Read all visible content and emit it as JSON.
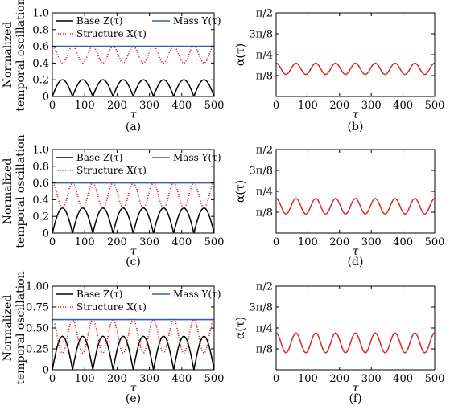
{
  "chart_data": [
    {
      "type": "line",
      "panel_label": "(a)",
      "ylabel_lines": [
        "Normalized",
        "temporal oscillation"
      ],
      "xlabel": "τ",
      "xlim": [
        0,
        500
      ],
      "ylim": [
        0,
        1.0
      ],
      "xticks": [
        0,
        100,
        200,
        300,
        400,
        500
      ],
      "yticks": [
        0,
        0.2,
        0.4,
        0.6,
        0.8,
        1.0
      ],
      "ytick_labels": [
        "0",
        "0.2",
        "0.4",
        "0.6",
        "0.8",
        "1.0"
      ],
      "legend": [
        {
          "label": "Base Z(τ)",
          "color": "#000000",
          "style": "solid"
        },
        {
          "label": "Mass Y(τ)",
          "color": "#3a5fa8",
          "style": "solid"
        },
        {
          "label": "Structure X(τ)",
          "color": "#e0202a",
          "style": "dotted"
        }
      ],
      "series": [
        {
          "name": "Base Z(τ)",
          "color": "#000000",
          "style": "solid",
          "wave": "rectified_sine",
          "period": 62.5,
          "amplitude": 0.2,
          "offset": 0.0,
          "phase_start": 0.0
        },
        {
          "name": "Structure X(τ)",
          "color": "#e0202a",
          "style": "dotted",
          "wave": "cosine",
          "period": 62.5,
          "mean": 0.5,
          "amplitude": 0.1,
          "phase_start": 0.0
        },
        {
          "name": "Mass Y(τ)",
          "color": "#3a5fa8",
          "style": "solid",
          "wave": "constant",
          "value": 0.6
        }
      ]
    },
    {
      "type": "line",
      "panel_label": "(b)",
      "ylabel": "α(τ)",
      "xlabel": "τ",
      "xlim": [
        0,
        500
      ],
      "ylim": [
        0,
        1.5708
      ],
      "xticks": [
        0,
        100,
        200,
        300,
        400,
        500
      ],
      "yticks": [
        0.3927,
        0.7854,
        1.1781,
        1.5708
      ],
      "ytick_labels": [
        "π/8",
        "π/4",
        "3π/8",
        "π/2"
      ],
      "series": [
        {
          "name": "α(τ)",
          "color": "#d62a2a",
          "style": "solid",
          "wave": "cosine",
          "period": 62.5,
          "mean": 0.52,
          "amplitude": 0.105,
          "phase_start": 0.0
        }
      ]
    },
    {
      "type": "line",
      "panel_label": "(c)",
      "ylabel_lines": [
        "Normalized",
        "temporal oscillation"
      ],
      "xlabel": "τ",
      "xlim": [
        0,
        500
      ],
      "ylim": [
        0,
        1.0
      ],
      "xticks": [
        0,
        100,
        200,
        300,
        400,
        500
      ],
      "yticks": [
        0,
        0.2,
        0.4,
        0.6,
        0.8,
        1.0
      ],
      "ytick_labels": [
        "0",
        "0.2",
        "0.4",
        "0.6",
        "0.8",
        "1.0"
      ],
      "legend": [
        {
          "label": "Base Z(τ)",
          "color": "#000000",
          "style": "solid"
        },
        {
          "label": "Mass Y(τ)",
          "color": "#3a5fa8",
          "style": "solid"
        },
        {
          "label": "Structure X(τ)",
          "color": "#e0202a",
          "style": "dotted"
        }
      ],
      "series": [
        {
          "name": "Base Z(τ)",
          "color": "#000000",
          "style": "solid",
          "wave": "rectified_sine",
          "period": 62.5,
          "amplitude": 0.3,
          "offset": 0.0,
          "phase_start": 0.0
        },
        {
          "name": "Structure X(τ)",
          "color": "#e0202a",
          "style": "dotted",
          "wave": "cosine",
          "period": 62.5,
          "mean": 0.45,
          "amplitude": 0.15,
          "phase_start": 0.0
        },
        {
          "name": "Mass Y(τ)",
          "color": "#3a5fa8",
          "style": "solid",
          "wave": "constant",
          "value": 0.6
        }
      ]
    },
    {
      "type": "line",
      "panel_label": "(d)",
      "ylabel": "α(τ)",
      "xlabel": "τ",
      "xlim": [
        0,
        500
      ],
      "ylim": [
        0,
        1.5708
      ],
      "xticks": [
        0,
        100,
        200,
        300,
        400,
        500
      ],
      "yticks": [
        0.3927,
        0.7854,
        1.1781,
        1.5708
      ],
      "ytick_labels": [
        "π/8",
        "π/4",
        "3π/8",
        "π/2"
      ],
      "series": [
        {
          "name": "α(τ)",
          "color": "#d62a2a",
          "style": "solid",
          "wave": "cosine",
          "period": 62.5,
          "mean": 0.505,
          "amplitude": 0.145,
          "phase_start": 0.0
        }
      ]
    },
    {
      "type": "line",
      "panel_label": "(e)",
      "ylabel_lines": [
        "Normalized",
        "temporal oscillation"
      ],
      "xlabel": "τ",
      "xlim": [
        0,
        500
      ],
      "ylim": [
        0,
        1.0
      ],
      "xticks": [
        0,
        100,
        200,
        300,
        400,
        500
      ],
      "yticks": [
        0,
        0.25,
        0.5,
        0.75,
        1.0
      ],
      "ytick_labels": [
        "0",
        "0.25",
        "0.50",
        "0.75",
        "1.00"
      ],
      "legend": [
        {
          "label": "Base Z(τ)",
          "color": "#000000",
          "style": "solid"
        },
        {
          "label": "Mass Y(τ)",
          "color": "#3a5fa8",
          "style": "solid"
        },
        {
          "label": "Structure X(τ)",
          "color": "#e0202a",
          "style": "dotted"
        }
      ],
      "series": [
        {
          "name": "Base Z(τ)",
          "color": "#000000",
          "style": "solid",
          "wave": "rectified_sine",
          "period": 62.5,
          "amplitude": 0.4,
          "offset": 0.0,
          "phase_start": 0.0
        },
        {
          "name": "Structure X(τ)",
          "color": "#e0202a",
          "style": "dotted",
          "wave": "cosine",
          "period": 62.5,
          "mean": 0.4,
          "amplitude": 0.2,
          "phase_start": 0.0
        },
        {
          "name": "Mass Y(τ)",
          "color": "#3a5fa8",
          "style": "solid",
          "wave": "constant",
          "value": 0.6
        }
      ]
    },
    {
      "type": "line",
      "panel_label": "(f)",
      "ylabel": "α(τ)",
      "xlabel": "τ",
      "xlim": [
        0,
        500
      ],
      "ylim": [
        0,
        1.5708
      ],
      "xticks": [
        0,
        100,
        200,
        300,
        400,
        500
      ],
      "yticks": [
        0.3927,
        0.7854,
        1.1781,
        1.5708
      ],
      "ytick_labels": [
        "π/8",
        "π/4",
        "3π/8",
        "π/2"
      ],
      "series": [
        {
          "name": "α(τ)",
          "color": "#d62a2a",
          "style": "solid",
          "wave": "cosine",
          "period": 62.5,
          "mean": 0.505,
          "amplitude": 0.185,
          "phase_start": 0.0
        }
      ]
    }
  ]
}
